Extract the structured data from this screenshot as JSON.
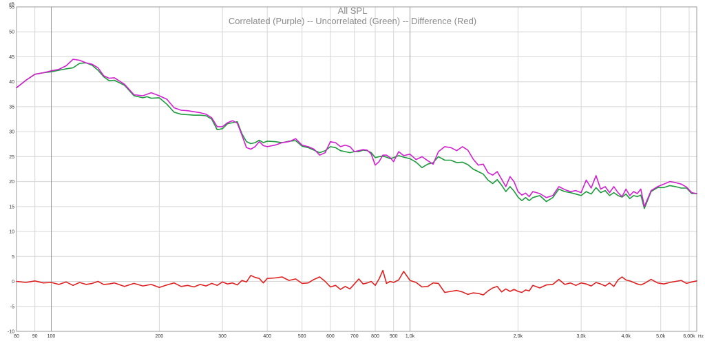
{
  "chart_data": {
    "type": "line",
    "title": "All SPL",
    "subtitle": "Correlated (Purple) -- Uncorrelated (Green) -- Difference (Red)",
    "xlabel": "Hz",
    "ylabel": "dB",
    "x_scale": "log",
    "xlim": [
      80,
      6300
    ],
    "ylim": [
      -10,
      55
    ],
    "grid": true,
    "y_ticks": [
      55,
      50,
      45,
      40,
      35,
      30,
      25,
      20,
      15,
      10,
      5,
      0,
      -5,
      -10
    ],
    "x_ticks": [
      {
        "value": 80,
        "label": "80",
        "major": false
      },
      {
        "value": 90,
        "label": "90",
        "major": false
      },
      {
        "value": 100,
        "label": "100",
        "major": true
      },
      {
        "value": 200,
        "label": "200",
        "major": false
      },
      {
        "value": 300,
        "label": "300",
        "major": false
      },
      {
        "value": 400,
        "label": "400",
        "major": false
      },
      {
        "value": 500,
        "label": "500",
        "major": false
      },
      {
        "value": 600,
        "label": "600",
        "major": false
      },
      {
        "value": 700,
        "label": "700",
        "major": false
      },
      {
        "value": 800,
        "label": "800",
        "major": false
      },
      {
        "value": 900,
        "label": "900",
        "major": false
      },
      {
        "value": 1000,
        "label": "1,0k",
        "major": true
      },
      {
        "value": 2000,
        "label": "2,0k",
        "major": false
      },
      {
        "value": 3000,
        "label": "3,0k",
        "major": false
      },
      {
        "value": 4000,
        "label": "4,0k",
        "major": false
      },
      {
        "value": 5000,
        "label": "5,0k",
        "major": false
      },
      {
        "value": 6000,
        "label": "6,00k",
        "major": false
      }
    ],
    "series": [
      {
        "name": "Correlated",
        "color": "#d020d0",
        "x": [
          80,
          85,
          90,
          95,
          100,
          105,
          110,
          115,
          120,
          125,
          130,
          135,
          140,
          145,
          150,
          160,
          170,
          180,
          185,
          190,
          200,
          210,
          220,
          230,
          240,
          250,
          260,
          270,
          280,
          290,
          300,
          310,
          320,
          330,
          340,
          350,
          360,
          370,
          380,
          390,
          400,
          420,
          440,
          460,
          480,
          500,
          520,
          540,
          560,
          580,
          600,
          620,
          640,
          660,
          680,
          700,
          720,
          740,
          760,
          780,
          800,
          820,
          840,
          860,
          880,
          900,
          930,
          960,
          1000,
          1040,
          1080,
          1120,
          1160,
          1200,
          1250,
          1300,
          1350,
          1400,
          1450,
          1500,
          1550,
          1600,
          1650,
          1700,
          1750,
          1800,
          1850,
          1900,
          1950,
          2000,
          2050,
          2100,
          2150,
          2200,
          2300,
          2400,
          2500,
          2600,
          2700,
          2800,
          2900,
          3000,
          3100,
          3200,
          3300,
          3400,
          3500,
          3600,
          3700,
          3800,
          3900,
          4000,
          4100,
          4200,
          4300,
          4400,
          4500,
          4700,
          4900,
          5100,
          5300,
          5500,
          5700,
          5900,
          6100,
          6300
        ],
        "values": [
          38.8,
          40.3,
          41.5,
          41.8,
          42.2,
          42.5,
          43.2,
          44.5,
          44.3,
          43.8,
          43.5,
          42.8,
          41.2,
          40.7,
          40.8,
          39.5,
          37.4,
          37.2,
          37.5,
          37.8,
          37.2,
          36.5,
          34.8,
          34.3,
          34.2,
          34.0,
          33.8,
          33.5,
          32.8,
          31.0,
          31.0,
          31.8,
          32.2,
          31.7,
          29.3,
          26.8,
          26.5,
          27.0,
          28.0,
          27.2,
          27.0,
          27.3,
          27.8,
          28.0,
          28.6,
          27.3,
          27.0,
          26.5,
          25.3,
          25.8,
          28.0,
          27.8,
          27.0,
          27.3,
          27.0,
          26.0,
          26.2,
          26.4,
          26.3,
          25.5,
          23.3,
          24.0,
          25.3,
          25.3,
          24.8,
          24.0,
          26.0,
          25.2,
          25.5,
          24.4,
          25.0,
          24.2,
          23.5,
          26.0,
          27.0,
          26.8,
          26.2,
          27.0,
          26.3,
          24.5,
          23.3,
          23.5,
          21.8,
          21.3,
          22.0,
          20.5,
          19.0,
          21.0,
          20.0,
          18.0,
          17.3,
          17.7,
          17.0,
          18.0,
          17.6,
          16.8,
          17.2,
          19.0,
          18.4,
          18.0,
          18.2,
          17.8,
          20.3,
          18.7,
          21.2,
          18.5,
          19.0,
          17.8,
          19.0,
          17.8,
          17.0,
          18.5,
          17.2,
          18.0,
          17.6,
          18.5,
          15.0,
          18.2,
          19.0,
          19.5,
          20.0,
          19.8,
          19.5,
          18.9,
          17.8,
          17.6
        ]
      },
      {
        "name": "Uncorrelated",
        "color": "#1a9a3a",
        "x": [
          80,
          85,
          90,
          95,
          100,
          105,
          110,
          115,
          120,
          125,
          130,
          135,
          140,
          145,
          150,
          160,
          170,
          180,
          185,
          190,
          200,
          210,
          220,
          230,
          240,
          250,
          260,
          270,
          280,
          290,
          300,
          310,
          320,
          330,
          340,
          350,
          360,
          370,
          380,
          390,
          400,
          420,
          440,
          460,
          480,
          500,
          520,
          540,
          560,
          580,
          600,
          620,
          640,
          660,
          680,
          700,
          720,
          740,
          760,
          780,
          800,
          820,
          840,
          860,
          880,
          900,
          930,
          960,
          1000,
          1040,
          1080,
          1120,
          1160,
          1200,
          1250,
          1300,
          1350,
          1400,
          1450,
          1500,
          1550,
          1600,
          1650,
          1700,
          1750,
          1800,
          1850,
          1900,
          1950,
          2000,
          2050,
          2100,
          2150,
          2200,
          2300,
          2400,
          2500,
          2600,
          2700,
          2800,
          2900,
          3000,
          3100,
          3200,
          3300,
          3400,
          3500,
          3600,
          3700,
          3800,
          3900,
          4000,
          4100,
          4200,
          4300,
          4400,
          4500,
          4700,
          4900,
          5100,
          5300,
          5500,
          5700,
          5900,
          6100,
          6300
        ],
        "values": [
          38.8,
          40.3,
          41.5,
          41.8,
          42.0,
          42.3,
          42.6,
          42.8,
          43.7,
          43.8,
          43.3,
          42.3,
          41.0,
          40.2,
          40.3,
          39.3,
          37.2,
          36.8,
          37.0,
          36.7,
          36.8,
          35.5,
          33.9,
          33.5,
          33.4,
          33.3,
          33.3,
          33.2,
          32.5,
          30.4,
          30.6,
          31.6,
          31.8,
          32.0,
          29.6,
          28.0,
          27.6,
          27.8,
          28.3,
          27.8,
          28.1,
          28.0,
          27.8,
          28.1,
          28.2,
          27.1,
          26.8,
          26.3,
          25.8,
          26.2,
          27.0,
          26.8,
          26.2,
          26.0,
          25.8,
          26.0,
          26.0,
          26.3,
          26.2,
          25.8,
          24.8,
          25.0,
          25.1,
          24.9,
          24.6,
          24.8,
          25.2,
          24.9,
          24.6,
          23.9,
          22.8,
          23.5,
          23.8,
          25.0,
          24.3,
          24.3,
          23.8,
          23.9,
          23.4,
          22.5,
          22.0,
          21.5,
          20.3,
          19.6,
          20.4,
          19.3,
          18.0,
          19.0,
          18.1,
          16.9,
          16.2,
          16.8,
          16.2,
          16.8,
          17.2,
          16.0,
          16.8,
          18.5,
          18.0,
          17.8,
          17.5,
          17.2,
          18.0,
          17.5,
          18.8,
          17.8,
          18.2,
          17.2,
          17.8,
          17.2,
          16.9,
          17.5,
          16.6,
          17.2,
          17.0,
          17.3,
          14.6,
          18.0,
          18.8,
          18.8,
          19.2,
          19.0,
          18.7,
          18.7,
          17.6,
          17.6
        ]
      },
      {
        "name": "Difference",
        "color": "#e02020",
        "x": [
          80,
          85,
          90,
          95,
          100,
          105,
          110,
          115,
          120,
          125,
          130,
          135,
          140,
          145,
          150,
          160,
          170,
          180,
          190,
          200,
          210,
          220,
          230,
          240,
          250,
          260,
          270,
          280,
          290,
          300,
          310,
          320,
          330,
          340,
          350,
          360,
          370,
          380,
          390,
          400,
          420,
          440,
          460,
          480,
          500,
          520,
          540,
          560,
          580,
          600,
          620,
          640,
          660,
          680,
          700,
          720,
          740,
          760,
          780,
          800,
          820,
          840,
          860,
          880,
          900,
          930,
          960,
          1000,
          1040,
          1080,
          1120,
          1160,
          1200,
          1250,
          1300,
          1350,
          1400,
          1450,
          1500,
          1550,
          1600,
          1650,
          1700,
          1750,
          1800,
          1850,
          1900,
          1950,
          2000,
          2050,
          2100,
          2150,
          2200,
          2300,
          2400,
          2500,
          2600,
          2700,
          2800,
          2900,
          3000,
          3100,
          3200,
          3300,
          3400,
          3500,
          3600,
          3700,
          3800,
          3900,
          4000,
          4100,
          4200,
          4300,
          4400,
          4500,
          4700,
          4900,
          5100,
          5300,
          5500,
          5700,
          5900,
          6100,
          6300
        ],
        "values": [
          0.0,
          -0.2,
          0.1,
          -0.3,
          -0.2,
          -0.6,
          -0.1,
          -0.8,
          -0.2,
          -0.6,
          -0.4,
          0.0,
          -0.6,
          -0.5,
          -0.3,
          -1.0,
          -0.4,
          -0.9,
          -0.6,
          -1.2,
          -0.7,
          -0.3,
          -1.0,
          -0.8,
          -1.1,
          -0.6,
          -0.9,
          -0.4,
          -0.8,
          -0.1,
          -0.5,
          -0.3,
          -0.7,
          0.2,
          -0.1,
          1.2,
          0.8,
          0.6,
          -0.3,
          0.6,
          0.7,
          0.9,
          0.2,
          0.5,
          -0.4,
          -0.3,
          0.4,
          0.9,
          0.0,
          -1.1,
          -0.8,
          -1.6,
          -1.0,
          -1.5,
          -0.5,
          0.5,
          -0.5,
          -0.3,
          0.0,
          -0.8,
          0.5,
          2.2,
          -0.4,
          0.0,
          -0.2,
          0.3,
          2.0,
          0.2,
          -0.2,
          -1.1,
          -1.0,
          -0.3,
          -0.4,
          -2.2,
          -2.0,
          -1.8,
          -2.1,
          -2.6,
          -2.3,
          -2.4,
          -2.7,
          -1.9,
          -1.3,
          -1.0,
          -2.1,
          -1.5,
          -2.0,
          -1.6,
          -2.0,
          -2.2,
          -1.7,
          -1.9,
          -0.8,
          -1.3,
          -0.7,
          -0.6,
          0.4,
          -0.6,
          -0.3,
          -0.8,
          -0.3,
          -0.5,
          -0.9,
          -0.2,
          -0.5,
          -0.9,
          -0.3,
          -1.0,
          0.3,
          0.9,
          0.3,
          0.1,
          -0.2,
          -0.5,
          -0.7,
          -0.4,
          0.4,
          -0.3,
          -0.5,
          -0.2,
          0.0,
          0.2,
          -0.4,
          -0.1,
          0.1
        ]
      }
    ]
  }
}
